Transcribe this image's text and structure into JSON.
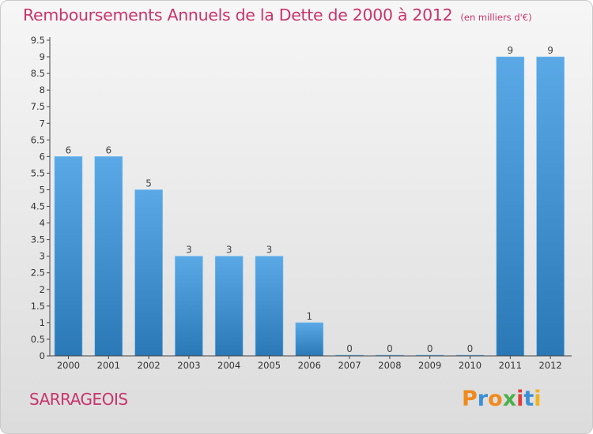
{
  "chart_data": {
    "type": "bar",
    "title": "Remboursements Annuels de la Dette de 2000 à 2012",
    "unit": "(en milliers d'€)",
    "categories": [
      "2000",
      "2001",
      "2002",
      "2003",
      "2004",
      "2005",
      "2006",
      "2007",
      "2008",
      "2009",
      "2010",
      "2011",
      "2012"
    ],
    "values": [
      6,
      6,
      5,
      3,
      3,
      3,
      1,
      0,
      0,
      0,
      0,
      9,
      9
    ],
    "data_labels": [
      "6",
      "6",
      "5",
      "3",
      "3",
      "3",
      "1",
      "0",
      "0",
      "0",
      "0",
      "9",
      "9"
    ],
    "yticks": [
      "0",
      "0.5",
      "1",
      "1.5",
      "2",
      "2.5",
      "3",
      "3.5",
      "4",
      "4.5",
      "5",
      "5.5",
      "6",
      "6.5",
      "7",
      "7.5",
      "8",
      "8.5",
      "9",
      "9.5"
    ],
    "ylim": [
      0,
      9.5
    ],
    "grid": false,
    "legend": "none",
    "bar_color": "#5aa9e6",
    "bar_color_dark": "#2b78b6"
  },
  "footer": {
    "commune": "SARRAGEOIS",
    "brand_letters": [
      "P",
      "r",
      "o",
      "x",
      "i",
      "t",
      "i"
    ],
    "brand_colors": [
      "#f08a1c",
      "#3a8fd6",
      "#f08a1c",
      "#4bb04b",
      "#e03c3c",
      "#3a8fd6",
      "#f2b21c"
    ]
  },
  "colors": {
    "title": "#c8346c"
  }
}
